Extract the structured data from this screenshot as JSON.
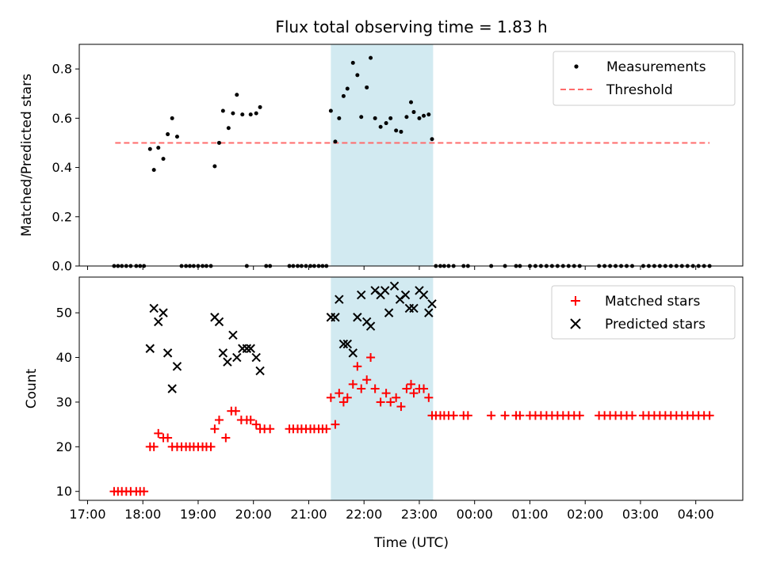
{
  "title": "Flux total observing time = 1.83 h",
  "colors": {
    "highlight": "#add8e6",
    "threshold": "#ff6b6b",
    "matched": "#ff0000",
    "predicted": "#000000",
    "measurement": "#000000"
  },
  "chart_data": [
    {
      "type": "scatter",
      "panel": "top",
      "ylabel": "Matched/Predicted stars",
      "xlim": [
        16.85,
        28.85
      ],
      "ylim": [
        0,
        0.9
      ],
      "yticks": [
        0.0,
        0.2,
        0.4,
        0.6,
        0.8
      ],
      "highlight_span": [
        21.4,
        23.25
      ],
      "legend": {
        "position": "top-right",
        "entries": [
          "Measurements",
          "Threshold"
        ]
      },
      "threshold": {
        "name": "Threshold",
        "y": 0.5,
        "x_range": [
          17.5,
          28.25
        ]
      },
      "series": [
        {
          "name": "Measurements",
          "points": [
            [
              17.48,
              0
            ],
            [
              17.55,
              0
            ],
            [
              17.62,
              0
            ],
            [
              17.7,
              0
            ],
            [
              17.78,
              0
            ],
            [
              17.88,
              0
            ],
            [
              17.95,
              0
            ],
            [
              18.02,
              0
            ],
            [
              18.13,
              0.475
            ],
            [
              18.2,
              0.39
            ],
            [
              18.28,
              0.48
            ],
            [
              18.37,
              0.435
            ],
            [
              18.45,
              0.535
            ],
            [
              18.53,
              0.6
            ],
            [
              18.62,
              0.525
            ],
            [
              18.7,
              0
            ],
            [
              18.78,
              0
            ],
            [
              18.85,
              0
            ],
            [
              18.92,
              0
            ],
            [
              19.0,
              0
            ],
            [
              19.08,
              0
            ],
            [
              19.15,
              0
            ],
            [
              19.23,
              0
            ],
            [
              19.3,
              0.405
            ],
            [
              19.38,
              0.5
            ],
            [
              19.45,
              0.63
            ],
            [
              19.55,
              0.56
            ],
            [
              19.63,
              0.62
            ],
            [
              19.7,
              0.695
            ],
            [
              19.8,
              0.615
            ],
            [
              19.88,
              0
            ],
            [
              19.95,
              0.615
            ],
            [
              20.05,
              0.62
            ],
            [
              20.12,
              0.645
            ],
            [
              20.23,
              0
            ],
            [
              20.3,
              0
            ],
            [
              20.65,
              0
            ],
            [
              20.72,
              0
            ],
            [
              20.8,
              0
            ],
            [
              20.87,
              0
            ],
            [
              20.95,
              0
            ],
            [
              21.03,
              0
            ],
            [
              21.1,
              0
            ],
            [
              21.18,
              0
            ],
            [
              21.25,
              0
            ],
            [
              21.32,
              0
            ],
            [
              21.4,
              0.63
            ],
            [
              21.48,
              0.505
            ],
            [
              21.55,
              0.6
            ],
            [
              21.63,
              0.69
            ],
            [
              21.7,
              0.72
            ],
            [
              21.8,
              0.825
            ],
            [
              21.88,
              0.775
            ],
            [
              21.95,
              0.605
            ],
            [
              22.05,
              0.725
            ],
            [
              22.12,
              0.845
            ],
            [
              22.2,
              0.6
            ],
            [
              22.3,
              0.565
            ],
            [
              22.4,
              0.58
            ],
            [
              22.48,
              0.6
            ],
            [
              22.58,
              0.55
            ],
            [
              22.67,
              0.545
            ],
            [
              22.77,
              0.605
            ],
            [
              22.85,
              0.665
            ],
            [
              22.9,
              0.625
            ],
            [
              23.0,
              0.6
            ],
            [
              23.08,
              0.61
            ],
            [
              23.17,
              0.615
            ],
            [
              23.23,
              0.515
            ],
            [
              23.3,
              0
            ],
            [
              23.38,
              0
            ],
            [
              23.45,
              0
            ],
            [
              23.53,
              0
            ],
            [
              23.62,
              0
            ],
            [
              23.8,
              0
            ],
            [
              23.88,
              0
            ],
            [
              24.3,
              0
            ],
            [
              24.55,
              0
            ],
            [
              24.75,
              0
            ],
            [
              24.82,
              0
            ],
            [
              25.0,
              0
            ],
            [
              25.1,
              0
            ],
            [
              25.2,
              0
            ],
            [
              25.3,
              0
            ],
            [
              25.4,
              0
            ],
            [
              25.5,
              0
            ],
            [
              25.6,
              0
            ],
            [
              25.7,
              0
            ],
            [
              25.8,
              0
            ],
            [
              25.9,
              0
            ],
            [
              26.25,
              0
            ],
            [
              26.35,
              0
            ],
            [
              26.45,
              0
            ],
            [
              26.55,
              0
            ],
            [
              26.65,
              0
            ],
            [
              26.75,
              0
            ],
            [
              26.85,
              0
            ],
            [
              27.05,
              0
            ],
            [
              27.15,
              0
            ],
            [
              27.25,
              0
            ],
            [
              27.35,
              0
            ],
            [
              27.45,
              0
            ],
            [
              27.55,
              0
            ],
            [
              27.65,
              0
            ],
            [
              27.75,
              0
            ],
            [
              27.85,
              0
            ],
            [
              27.95,
              0
            ],
            [
              28.05,
              0
            ],
            [
              28.15,
              0
            ],
            [
              28.25,
              0
            ]
          ]
        }
      ]
    },
    {
      "type": "scatter",
      "panel": "bottom",
      "xlabel": "Time (UTC)",
      "ylabel": "Count",
      "xlim": [
        16.85,
        28.85
      ],
      "ylim": [
        8,
        58
      ],
      "yticks": [
        10,
        20,
        30,
        40,
        50
      ],
      "xticks": [
        17,
        18,
        19,
        20,
        21,
        22,
        23,
        24,
        25,
        26,
        27,
        28
      ],
      "xtick_labels": [
        "17:00",
        "18:00",
        "19:00",
        "20:00",
        "21:00",
        "22:00",
        "23:00",
        "00:00",
        "01:00",
        "02:00",
        "03:00",
        "04:00"
      ],
      "highlight_span": [
        21.4,
        23.25
      ],
      "legend": {
        "position": "top-right",
        "entries": [
          "Matched stars",
          "Predicted stars"
        ]
      },
      "series": [
        {
          "name": "Matched stars",
          "marker": "plus",
          "points": [
            [
              17.48,
              10
            ],
            [
              17.55,
              10
            ],
            [
              17.62,
              10
            ],
            [
              17.7,
              10
            ],
            [
              17.78,
              10
            ],
            [
              17.88,
              10
            ],
            [
              17.95,
              10
            ],
            [
              18.02,
              10
            ],
            [
              18.13,
              20
            ],
            [
              18.2,
              20
            ],
            [
              18.28,
              23
            ],
            [
              18.37,
              22
            ],
            [
              18.45,
              22
            ],
            [
              18.53,
              20
            ],
            [
              18.62,
              20
            ],
            [
              18.7,
              20
            ],
            [
              18.78,
              20
            ],
            [
              18.85,
              20
            ],
            [
              18.92,
              20
            ],
            [
              19.0,
              20
            ],
            [
              19.08,
              20
            ],
            [
              19.15,
              20
            ],
            [
              19.23,
              20
            ],
            [
              19.3,
              24
            ],
            [
              19.38,
              26
            ],
            [
              19.5,
              22
            ],
            [
              19.6,
              28
            ],
            [
              19.68,
              28
            ],
            [
              19.78,
              26
            ],
            [
              19.88,
              26
            ],
            [
              19.95,
              26
            ],
            [
              20.05,
              25
            ],
            [
              20.12,
              24
            ],
            [
              20.2,
              24
            ],
            [
              20.3,
              24
            ],
            [
              20.65,
              24
            ],
            [
              20.72,
              24
            ],
            [
              20.8,
              24
            ],
            [
              20.87,
              24
            ],
            [
              20.95,
              24
            ],
            [
              21.03,
              24
            ],
            [
              21.1,
              24
            ],
            [
              21.18,
              24
            ],
            [
              21.25,
              24
            ],
            [
              21.32,
              24
            ],
            [
              21.4,
              31
            ],
            [
              21.48,
              25
            ],
            [
              21.55,
              32
            ],
            [
              21.63,
              30
            ],
            [
              21.7,
              31
            ],
            [
              21.8,
              34
            ],
            [
              21.88,
              38
            ],
            [
              21.95,
              33
            ],
            [
              22.05,
              35
            ],
            [
              22.12,
              40
            ],
            [
              22.2,
              33
            ],
            [
              22.3,
              30
            ],
            [
              22.4,
              32
            ],
            [
              22.48,
              30
            ],
            [
              22.58,
              31
            ],
            [
              22.67,
              29
            ],
            [
              22.77,
              33
            ],
            [
              22.85,
              34
            ],
            [
              22.9,
              32
            ],
            [
              23.0,
              33
            ],
            [
              23.08,
              33
            ],
            [
              23.17,
              31
            ],
            [
              23.23,
              27
            ],
            [
              23.3,
              27
            ],
            [
              23.38,
              27
            ],
            [
              23.45,
              27
            ],
            [
              23.53,
              27
            ],
            [
              23.62,
              27
            ],
            [
              23.8,
              27
            ],
            [
              23.88,
              27
            ],
            [
              24.3,
              27
            ],
            [
              24.55,
              27
            ],
            [
              24.75,
              27
            ],
            [
              24.82,
              27
            ],
            [
              25.0,
              27
            ],
            [
              25.1,
              27
            ],
            [
              25.2,
              27
            ],
            [
              25.3,
              27
            ],
            [
              25.4,
              27
            ],
            [
              25.5,
              27
            ],
            [
              25.6,
              27
            ],
            [
              25.7,
              27
            ],
            [
              25.8,
              27
            ],
            [
              25.9,
              27
            ],
            [
              26.25,
              27
            ],
            [
              26.35,
              27
            ],
            [
              26.45,
              27
            ],
            [
              26.55,
              27
            ],
            [
              26.65,
              27
            ],
            [
              26.75,
              27
            ],
            [
              26.85,
              27
            ],
            [
              27.05,
              27
            ],
            [
              27.15,
              27
            ],
            [
              27.25,
              27
            ],
            [
              27.35,
              27
            ],
            [
              27.45,
              27
            ],
            [
              27.55,
              27
            ],
            [
              27.65,
              27
            ],
            [
              27.75,
              27
            ],
            [
              27.85,
              27
            ],
            [
              27.95,
              27
            ],
            [
              28.05,
              27
            ],
            [
              28.15,
              27
            ],
            [
              28.25,
              27
            ]
          ]
        },
        {
          "name": "Predicted stars",
          "marker": "x",
          "points": [
            [
              18.13,
              42
            ],
            [
              18.2,
              51
            ],
            [
              18.28,
              48
            ],
            [
              18.37,
              50
            ],
            [
              18.45,
              41
            ],
            [
              18.53,
              33
            ],
            [
              18.62,
              38
            ],
            [
              19.3,
              49
            ],
            [
              19.38,
              48
            ],
            [
              19.45,
              41
            ],
            [
              19.53,
              39
            ],
            [
              19.63,
              45
            ],
            [
              19.7,
              40
            ],
            [
              19.8,
              42
            ],
            [
              19.88,
              42
            ],
            [
              19.95,
              42
            ],
            [
              20.05,
              40
            ],
            [
              20.12,
              37
            ],
            [
              21.4,
              49
            ],
            [
              21.48,
              49
            ],
            [
              21.55,
              53
            ],
            [
              21.63,
              43
            ],
            [
              21.7,
              43
            ],
            [
              21.8,
              41
            ],
            [
              21.88,
              49
            ],
            [
              21.95,
              54
            ],
            [
              22.05,
              48
            ],
            [
              22.12,
              47
            ],
            [
              22.2,
              55
            ],
            [
              22.3,
              54
            ],
            [
              22.38,
              55
            ],
            [
              22.45,
              50
            ],
            [
              22.55,
              56
            ],
            [
              22.65,
              53
            ],
            [
              22.75,
              54
            ],
            [
              22.82,
              51
            ],
            [
              22.9,
              51
            ],
            [
              23.0,
              55
            ],
            [
              23.08,
              54
            ],
            [
              23.17,
              50
            ],
            [
              23.23,
              52
            ]
          ]
        }
      ]
    }
  ]
}
